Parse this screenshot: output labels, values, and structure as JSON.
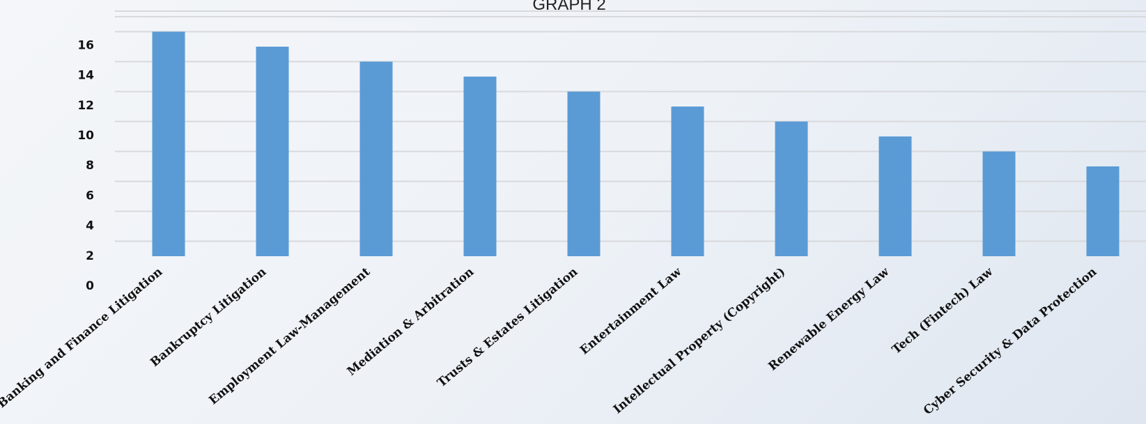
{
  "chart_data": {
    "type": "bar",
    "title": "GRAPH 2",
    "xlabel": "",
    "ylabel": "",
    "categories": [
      "Banking and Finance Litigation",
      "Bankruptcy Litigation",
      "Employment Law-Management",
      "Mediation & Arbitration",
      "Trusts & Estates Litigation",
      "Entertainment Law",
      "Intellectual Property (Copyright)",
      "Renewable Energy Law",
      "Tech (Fintech) Law",
      "Cyber Security & Data Protection"
    ],
    "values": [
      16,
      15,
      14,
      13,
      12,
      11,
      10,
      9,
      8,
      7
    ],
    "ylim": [
      0,
      16
    ],
    "yticks": [
      "0",
      "2",
      "4",
      "6",
      "8",
      "10",
      "12",
      "14",
      "16"
    ],
    "grid": true,
    "legend": "none",
    "colors": {
      "bar": "#5b9bd5"
    }
  }
}
